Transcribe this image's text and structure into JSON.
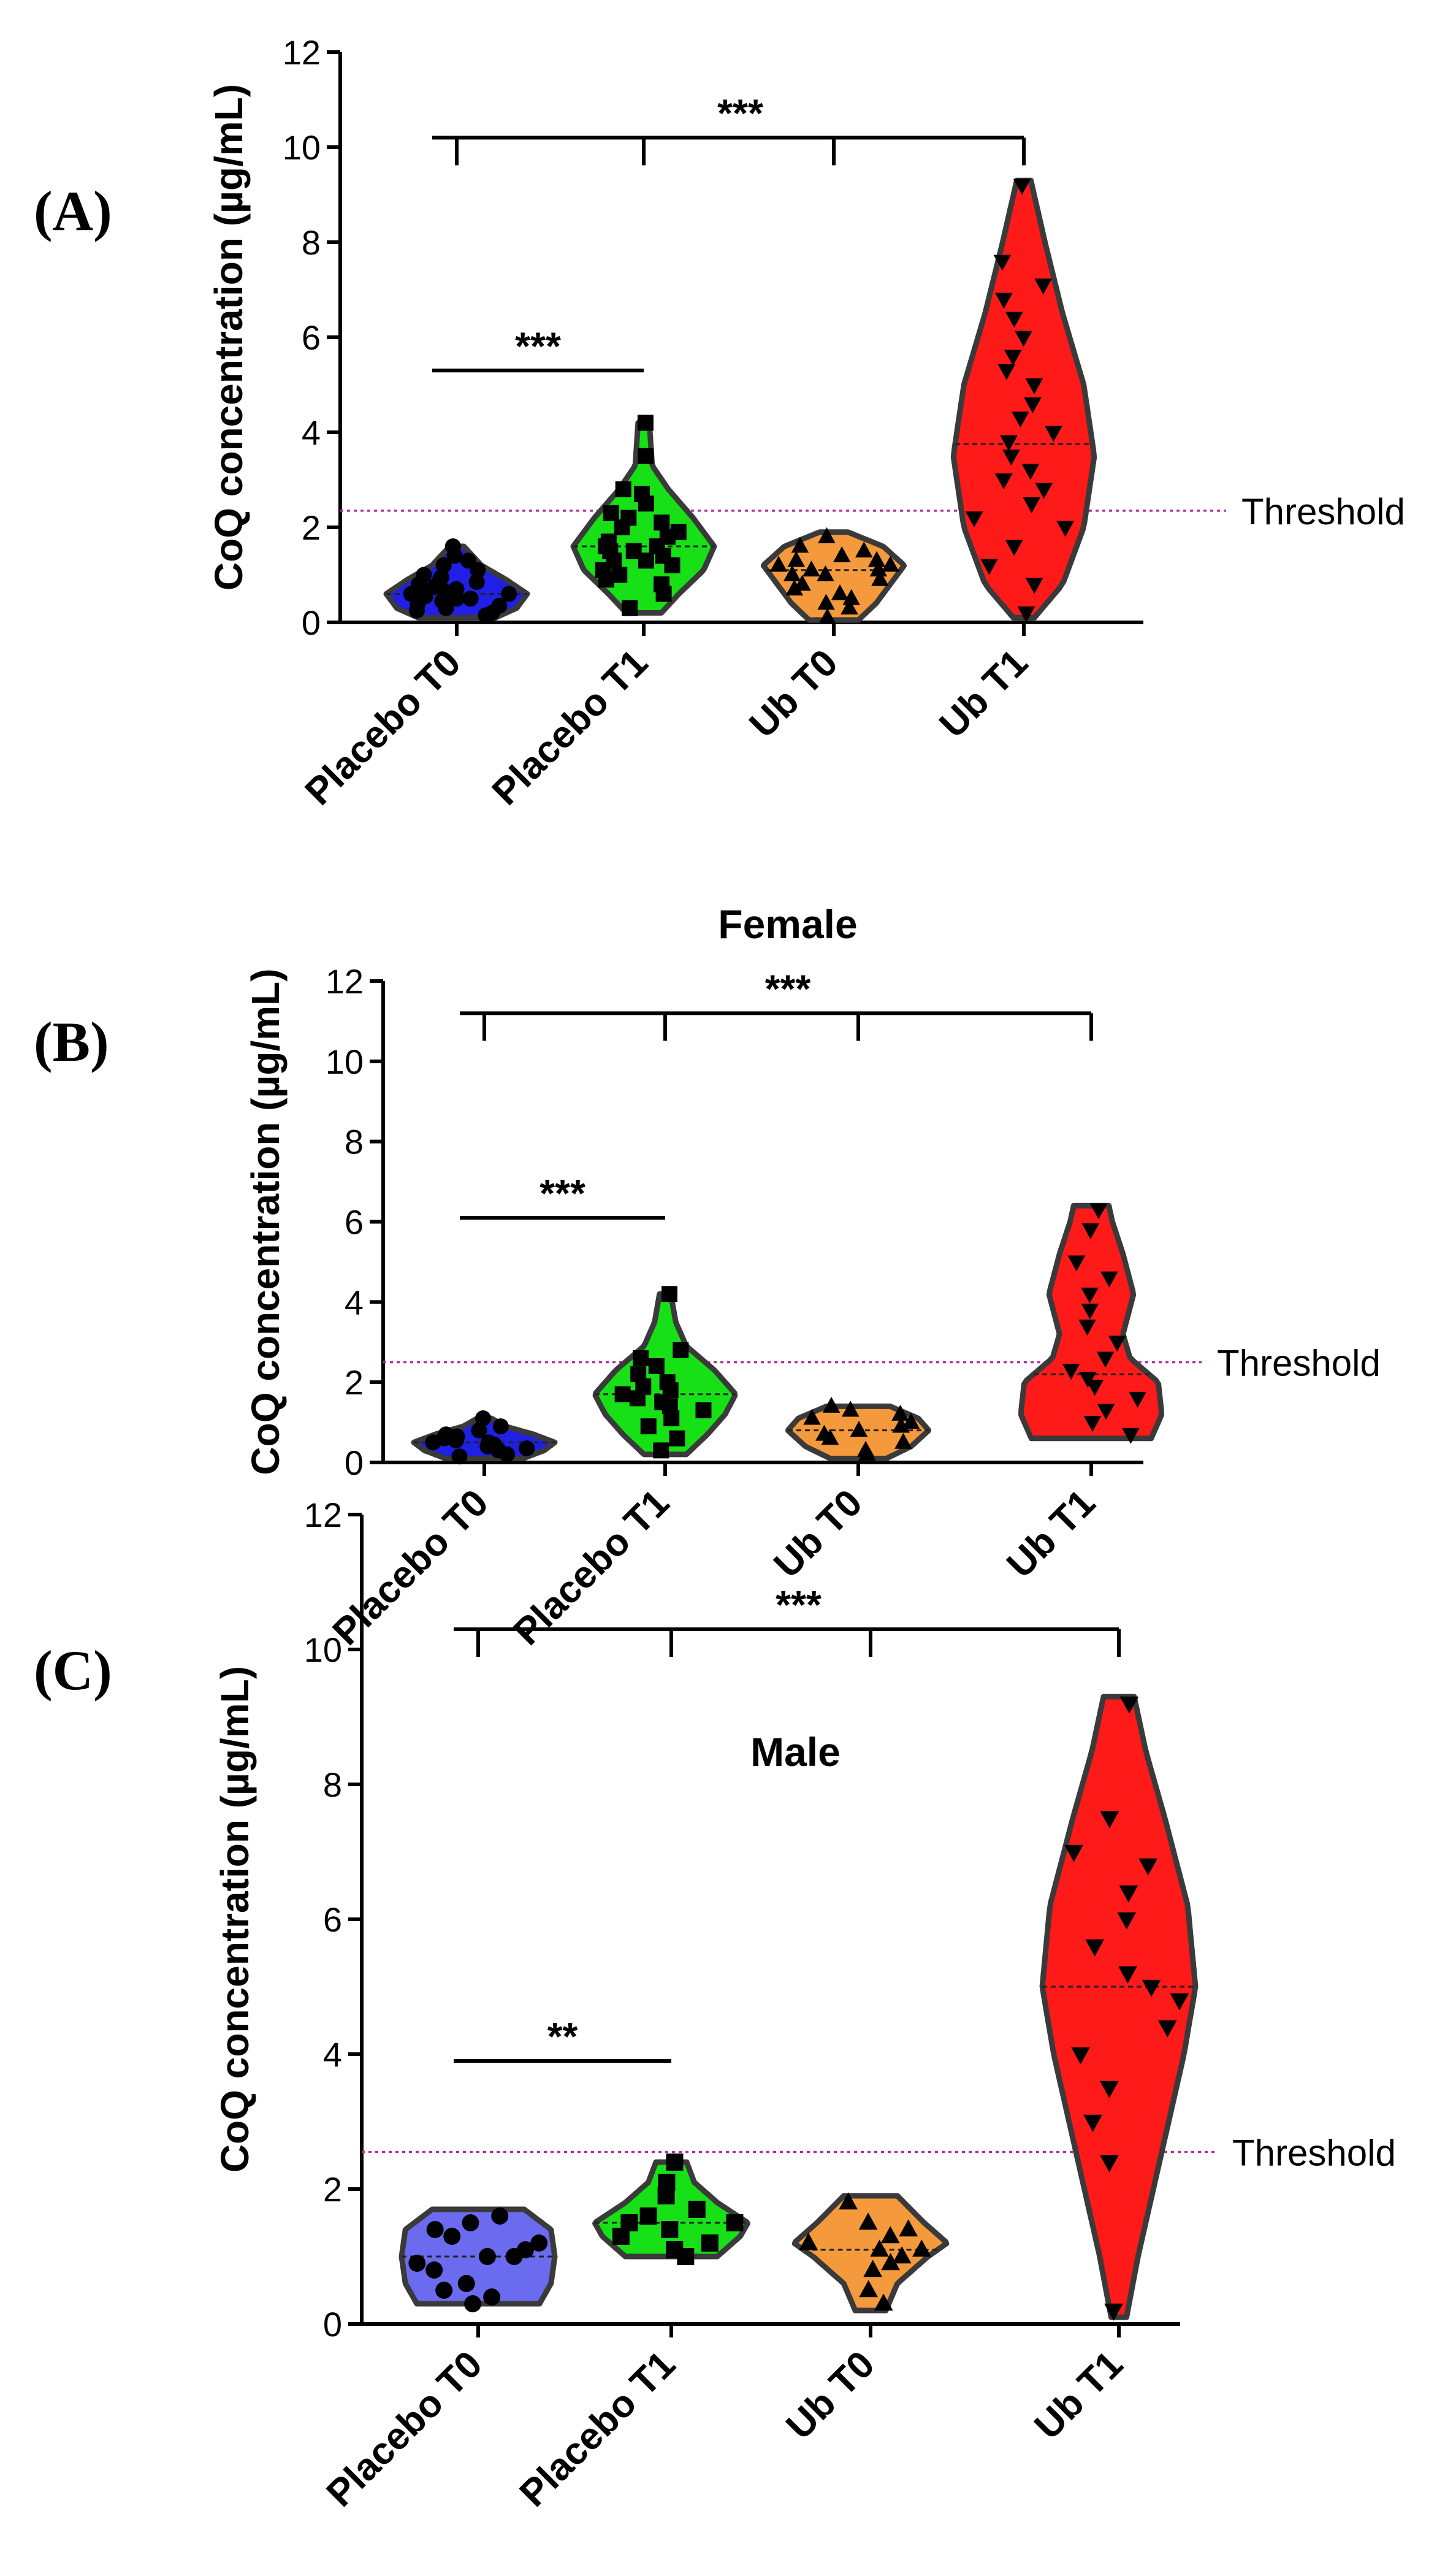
{
  "colors": {
    "placebo_t0_main": "#1f1fe6",
    "placebo_t0_male": "#6b6bf0",
    "placebo_t1": "#17e017",
    "ub_t0": "#f59a3c",
    "ub_t1": "#ff1a1a",
    "outline": "#3a3a3a",
    "threshold_line": "#b0309a"
  },
  "chart_data": [
    {
      "type": "violin",
      "panel_label": "(A)",
      "title": "",
      "ylabel": "CoQ concentration (µg/mL)",
      "ylim": [
        0,
        12
      ],
      "yticks": [
        "0",
        "2",
        "4",
        "6",
        "8",
        "10",
        "12"
      ],
      "categories": [
        "Placebo T0",
        "Placebo T1",
        "Ub T0",
        "Ub T1"
      ],
      "threshold": {
        "label": "Threshold",
        "value": 2.35
      },
      "series": [
        {
          "name": "Placebo T0",
          "color": "#1f1fe6",
          "marker": "circle",
          "min": 0.1,
          "max": 1.6,
          "median": 0.6,
          "shape": [
            [
              0.1,
              0.55
            ],
            [
              0.3,
              0.85
            ],
            [
              0.6,
              1.0
            ],
            [
              0.9,
              0.7
            ],
            [
              1.2,
              0.35
            ],
            [
              1.6,
              0.1
            ]
          ],
          "points": [
            0.15,
            0.2,
            0.25,
            0.3,
            0.35,
            0.4,
            0.45,
            0.5,
            0.5,
            0.55,
            0.6,
            0.6,
            0.65,
            0.7,
            0.7,
            0.75,
            0.8,
            0.85,
            0.9,
            0.95,
            1.0,
            1.1,
            1.2,
            1.3,
            1.4,
            1.6
          ]
        },
        {
          "name": "Placebo T1",
          "color": "#17e017",
          "marker": "square",
          "min": 0.2,
          "max": 4.2,
          "median": 1.6,
          "shape": [
            [
              0.2,
              0.25
            ],
            [
              0.6,
              0.5
            ],
            [
              1.1,
              0.85
            ],
            [
              1.6,
              1.0
            ],
            [
              2.2,
              0.7
            ],
            [
              2.8,
              0.35
            ],
            [
              3.3,
              0.12
            ],
            [
              4.2,
              0.08
            ]
          ],
          "points": [
            0.3,
            0.6,
            0.8,
            0.9,
            1.0,
            1.1,
            1.2,
            1.3,
            1.3,
            1.4,
            1.5,
            1.5,
            1.6,
            1.6,
            1.7,
            1.8,
            1.9,
            2.0,
            2.1,
            2.2,
            2.3,
            2.5,
            2.7,
            2.8,
            3.5,
            4.2
          ]
        },
        {
          "name": "Ub T0",
          "color": "#f59a3c",
          "marker": "triangle-up",
          "min": 0.05,
          "max": 1.9,
          "median": 1.1,
          "shape": [
            [
              0.05,
              0.35
            ],
            [
              0.4,
              0.6
            ],
            [
              0.9,
              0.85
            ],
            [
              1.2,
              1.0
            ],
            [
              1.6,
              0.7
            ],
            [
              1.9,
              0.2
            ]
          ],
          "points": [
            0.1,
            0.3,
            0.4,
            0.5,
            0.6,
            0.7,
            0.8,
            0.9,
            1.0,
            1.0,
            1.1,
            1.1,
            1.2,
            1.2,
            1.3,
            1.3,
            1.4,
            1.5,
            1.6,
            1.8
          ]
        },
        {
          "name": "Ub T1",
          "color": "#ff1a1a",
          "marker": "triangle-down",
          "min": 0.1,
          "max": 9.3,
          "median": 3.75,
          "shape": [
            [
              0.1,
              0.15
            ],
            [
              0.8,
              0.55
            ],
            [
              2.0,
              0.85
            ],
            [
              3.5,
              1.0
            ],
            [
              5.0,
              0.85
            ],
            [
              6.5,
              0.55
            ],
            [
              8.0,
              0.3
            ],
            [
              9.3,
              0.1
            ]
          ],
          "points": [
            0.2,
            0.8,
            1.2,
            1.6,
            2.0,
            2.2,
            2.5,
            2.8,
            3.0,
            3.2,
            3.5,
            3.8,
            4.0,
            4.3,
            4.6,
            5.0,
            5.3,
            5.6,
            6.0,
            6.4,
            6.8,
            7.1,
            7.6,
            9.2
          ]
        }
      ],
      "significance": [
        {
          "label": "***",
          "groups": [
            "Placebo T0",
            "Placebo T1"
          ],
          "y": 5.3,
          "type": "line"
        },
        {
          "label": "***",
          "groups": [
            "Placebo T0",
            "Placebo T1",
            "Ub T0",
            "Ub T1"
          ],
          "y": 10.2,
          "type": "bracket"
        }
      ]
    },
    {
      "type": "violin",
      "panel_label": "(B)",
      "title": "Female",
      "ylabel": "CoQ concentration (µg/mL)",
      "ylim": [
        0,
        12
      ],
      "yticks": [
        "0",
        "2",
        "4",
        "6",
        "8",
        "10",
        "12"
      ],
      "categories": [
        "Placebo T0",
        "Placebo T1",
        "Ub T0",
        "Ub T1"
      ],
      "threshold": {
        "label": "Threshold",
        "value": 2.5
      },
      "series": [
        {
          "name": "Placebo T0",
          "color": "#1f1fe6",
          "marker": "circle",
          "min": 0.1,
          "max": 1.1,
          "median": 0.5,
          "shape": [
            [
              0.1,
              0.55
            ],
            [
              0.3,
              0.85
            ],
            [
              0.5,
              1.0
            ],
            [
              0.7,
              0.7
            ],
            [
              0.9,
              0.3
            ],
            [
              1.1,
              0.1
            ]
          ],
          "points": [
            0.15,
            0.2,
            0.3,
            0.35,
            0.4,
            0.45,
            0.5,
            0.5,
            0.55,
            0.6,
            0.65,
            0.7,
            0.8,
            0.9,
            1.1
          ]
        },
        {
          "name": "Placebo T1",
          "color": "#17e017",
          "marker": "square",
          "min": 0.2,
          "max": 4.2,
          "median": 1.7,
          "shape": [
            [
              0.2,
              0.3
            ],
            [
              0.7,
              0.6
            ],
            [
              1.2,
              0.85
            ],
            [
              1.7,
              1.0
            ],
            [
              2.3,
              0.7
            ],
            [
              2.9,
              0.3
            ],
            [
              3.5,
              0.15
            ],
            [
              4.2,
              0.08
            ]
          ],
          "points": [
            0.3,
            0.6,
            0.9,
            1.1,
            1.3,
            1.4,
            1.5,
            1.6,
            1.7,
            1.8,
            1.9,
            2.0,
            2.2,
            2.4,
            2.6,
            2.8,
            4.2
          ]
        },
        {
          "name": "Ub T0",
          "color": "#f59a3c",
          "marker": "triangle-up",
          "min": 0.1,
          "max": 1.4,
          "median": 0.8,
          "shape": [
            [
              0.1,
              0.4
            ],
            [
              0.4,
              0.75
            ],
            [
              0.8,
              1.0
            ],
            [
              1.1,
              0.85
            ],
            [
              1.4,
              0.45
            ]
          ],
          "points": [
            0.2,
            0.3,
            0.5,
            0.6,
            0.7,
            0.8,
            0.9,
            1.0,
            1.1,
            1.2,
            1.3,
            1.4
          ]
        },
        {
          "name": "Ub T1",
          "color": "#ff1a1a",
          "marker": "triangle-down",
          "min": 0.6,
          "max": 6.4,
          "median": 2.2,
          "shape": [
            [
              0.6,
              0.85
            ],
            [
              1.2,
              1.0
            ],
            [
              2.0,
              0.95
            ],
            [
              2.6,
              0.55
            ],
            [
              3.2,
              0.45
            ],
            [
              4.2,
              0.6
            ],
            [
              5.2,
              0.45
            ],
            [
              6.0,
              0.3
            ],
            [
              6.4,
              0.25
            ]
          ],
          "points": [
            0.7,
            1.0,
            1.3,
            1.6,
            1.9,
            2.1,
            2.3,
            2.6,
            3.0,
            3.4,
            3.8,
            4.2,
            4.6,
            5.0,
            5.8,
            6.3
          ]
        }
      ],
      "significance": [
        {
          "label": "***",
          "groups": [
            "Placebo T0",
            "Placebo T1"
          ],
          "y": 6.1,
          "type": "line"
        },
        {
          "label": "***",
          "groups": [
            "Placebo T0",
            "Placebo T1",
            "Ub T0",
            "Ub T1"
          ],
          "y": 11.2,
          "type": "bracket"
        }
      ]
    },
    {
      "type": "violin",
      "panel_label": "(C)",
      "title": "Male",
      "ylabel": "CoQ concentration (µg/mL)",
      "ylim": [
        0,
        12
      ],
      "yticks": [
        "0",
        "2",
        "4",
        "6",
        "8",
        "10",
        "12"
      ],
      "categories": [
        "Placebo T0",
        "Placebo T1",
        "Ub T0",
        "Ub T1"
      ],
      "threshold": {
        "label": "Threshold",
        "value": 2.55
      },
      "series": [
        {
          "name": "Placebo T0",
          "color": "#6b6bf0",
          "marker": "circle",
          "min": 0.3,
          "max": 1.7,
          "median": 1.0,
          "shape": [
            [
              0.3,
              0.8
            ],
            [
              0.6,
              0.95
            ],
            [
              1.0,
              1.0
            ],
            [
              1.4,
              0.95
            ],
            [
              1.7,
              0.6
            ]
          ],
          "points": [
            0.3,
            0.4,
            0.5,
            0.6,
            0.8,
            0.9,
            1.0,
            1.0,
            1.1,
            1.2,
            1.3,
            1.4,
            1.5,
            1.6
          ]
        },
        {
          "name": "Placebo T1",
          "color": "#17e017",
          "marker": "square",
          "min": 1.0,
          "max": 2.4,
          "median": 1.5,
          "shape": [
            [
              1.0,
              0.6
            ],
            [
              1.3,
              0.9
            ],
            [
              1.5,
              1.0
            ],
            [
              1.8,
              0.6
            ],
            [
              2.1,
              0.3
            ],
            [
              2.4,
              0.2
            ]
          ],
          "points": [
            1.0,
            1.1,
            1.2,
            1.3,
            1.4,
            1.5,
            1.5,
            1.6,
            1.7,
            1.9,
            2.1,
            2.4
          ]
        },
        {
          "name": "Ub T0",
          "color": "#f59a3c",
          "marker": "triangle-up",
          "min": 0.2,
          "max": 1.9,
          "median": 1.1,
          "shape": [
            [
              0.2,
              0.2
            ],
            [
              0.6,
              0.35
            ],
            [
              1.0,
              0.75
            ],
            [
              1.2,
              1.0
            ],
            [
              1.5,
              0.7
            ],
            [
              1.9,
              0.35
            ]
          ],
          "points": [
            0.3,
            0.5,
            0.8,
            0.9,
            1.0,
            1.1,
            1.1,
            1.2,
            1.3,
            1.4,
            1.5,
            1.8
          ]
        },
        {
          "name": "Ub T1",
          "color": "#ff1a1a",
          "marker": "triangle-down",
          "min": 0.1,
          "max": 9.3,
          "median": 5.0,
          "shape": [
            [
              0.1,
              0.1
            ],
            [
              1.0,
              0.25
            ],
            [
              2.5,
              0.55
            ],
            [
              4.0,
              0.85
            ],
            [
              5.0,
              1.0
            ],
            [
              6.2,
              0.9
            ],
            [
              7.5,
              0.6
            ],
            [
              8.5,
              0.35
            ],
            [
              9.3,
              0.2
            ]
          ],
          "points": [
            0.2,
            2.4,
            3.0,
            3.5,
            4.0,
            4.4,
            4.8,
            5.0,
            5.2,
            5.6,
            6.0,
            6.4,
            6.8,
            7.0,
            7.5,
            9.2
          ]
        }
      ],
      "significance": [
        {
          "label": "**",
          "groups": [
            "Placebo T0",
            "Placebo T1"
          ],
          "y": 3.9,
          "type": "line"
        },
        {
          "label": "***",
          "groups": [
            "Placebo T0",
            "Placebo T1",
            "Ub T0",
            "Ub T1"
          ],
          "y": 10.3,
          "type": "bracket"
        }
      ]
    }
  ]
}
